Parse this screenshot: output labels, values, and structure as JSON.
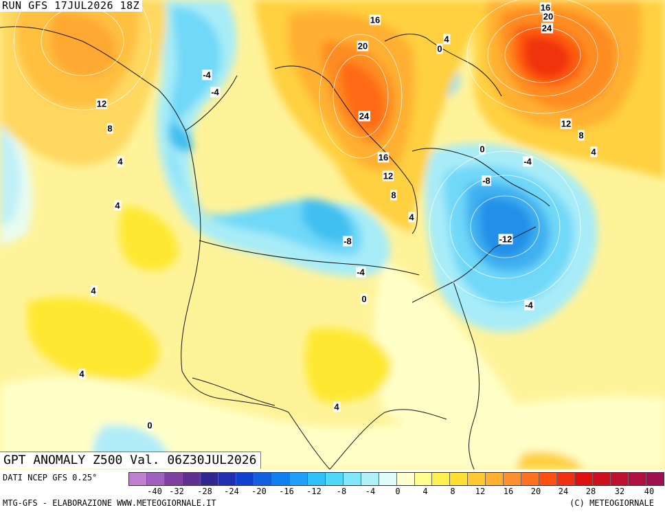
{
  "run_label": "RUN GFS 17JUL2026 18Z",
  "title": "GPT ANOMALY Z500 Val. 06Z30JUL2026",
  "source": "DATI NCEP GFS 0.25°",
  "footer_left": "MTG-GFS - ELABORAZIONE WWW.METEOGIORNALE.IT",
  "footer_right": "(C) METEOGIORNALE",
  "legend": {
    "ticks": [
      "-40",
      "-32",
      "-28",
      "-24",
      "-20",
      "-16",
      "-12",
      "-8",
      "-4",
      "0",
      "4",
      "8",
      "12",
      "16",
      "20",
      "24",
      "28",
      "32",
      "40"
    ],
    "colors": [
      "#c080d0",
      "#a060c0",
      "#8040a0",
      "#603090",
      "#302890",
      "#2030b0",
      "#1040d0",
      "#1060e0",
      "#1080f0",
      "#20a0f8",
      "#30c0f8",
      "#50d8f8",
      "#80e8f8",
      "#b0f0f8",
      "#e0fcf8",
      "#ffffd0",
      "#ffff90",
      "#fff050",
      "#ffe030",
      "#ffc830",
      "#ffb030",
      "#ff9030",
      "#ff7020",
      "#ff5010",
      "#f03010",
      "#e01010",
      "#d01020",
      "#c01030",
      "#b01040",
      "#a01050"
    ]
  },
  "contour_labels": [
    {
      "text": "16"
    },
    {
      "text": "20"
    },
    {
      "text": "24"
    },
    {
      "text": "16"
    },
    {
      "text": "20"
    },
    {
      "text": "24"
    },
    {
      "text": "4"
    },
    {
      "text": "0"
    },
    {
      "text": "-4"
    },
    {
      "text": "-4"
    },
    {
      "text": "12"
    },
    {
      "text": "8"
    },
    {
      "text": "4"
    },
    {
      "text": "4"
    },
    {
      "text": "16"
    },
    {
      "text": "12"
    },
    {
      "text": "8"
    },
    {
      "text": "4"
    },
    {
      "text": "12"
    },
    {
      "text": "8"
    },
    {
      "text": "4"
    },
    {
      "text": "0"
    },
    {
      "text": "-4"
    },
    {
      "text": "-8"
    },
    {
      "text": "-12"
    },
    {
      "text": "-8"
    },
    {
      "text": "-4"
    },
    {
      "text": "0"
    },
    {
      "text": "-4"
    },
    {
      "text": "4"
    },
    {
      "text": "4"
    },
    {
      "text": "4"
    },
    {
      "text": "0"
    }
  ]
}
